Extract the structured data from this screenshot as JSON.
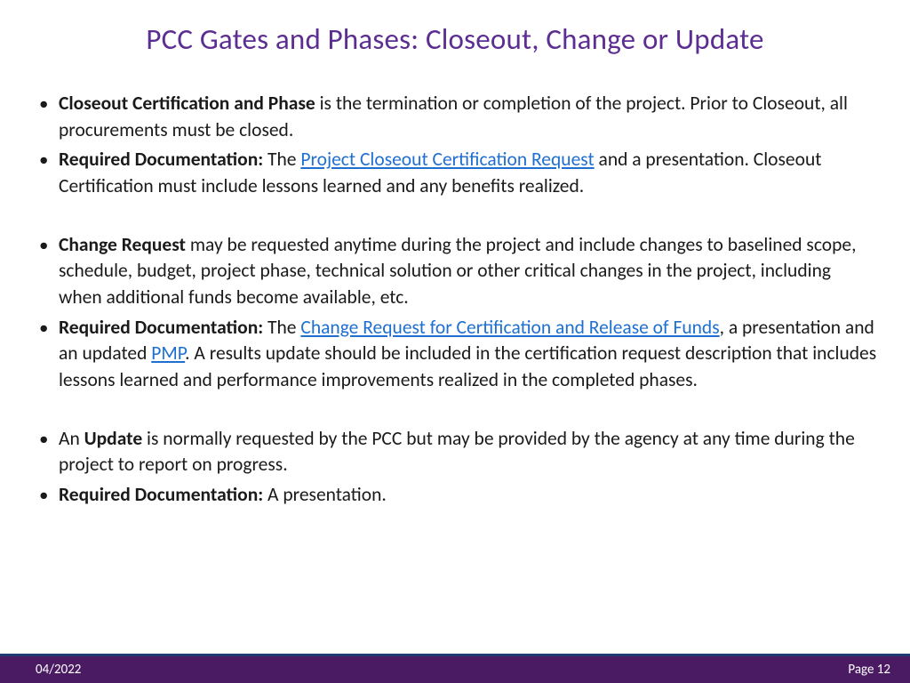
{
  "colors": {
    "title": "#5c2e91",
    "body_text": "#1a1a1a",
    "link": "#1f6fd1",
    "footer_bg": "#4a1a63",
    "footer_accent": "#1f3a6e",
    "footer_text": "#ffffff",
    "background": "#ffffff"
  },
  "title": "PCC Gates and Phases: Closeout, Change or Update",
  "bullets": {
    "b1": {
      "bold": "Closeout Certification and Phase",
      "rest": " is the termination or completion of the project. Prior to Closeout, all procurements must be closed."
    },
    "b2": {
      "bold": "Required Documentation:",
      "pre": " The ",
      "link1": "Project Closeout Certification Request",
      "rest": " and a presentation. Closeout Certification must include lessons learned and any benefits realized."
    },
    "b3": {
      "bold": "Change Request",
      "rest": " may be requested anytime during the project and include changes to baselined scope, schedule, budget, project phase, technical solution or other critical changes in the project, including when additional funds become available, etc."
    },
    "b4": {
      "bold": "Required Documentation:",
      "pre": " The ",
      "link1": "Change Request for Certification and Release of Funds",
      "mid1": ", a presentation and an updated ",
      "link2": "PMP",
      "rest": ".  A results update should be included in the certification request description that includes lessons learned and performance improvements realized in the completed phases."
    },
    "b5": {
      "pre": "An ",
      "bold": "Update",
      "rest": " is normally requested by the PCC but may be provided by the agency at any time during the project to report on progress."
    },
    "b6": {
      "bold": "Required Documentation:",
      "rest": "  A presentation."
    }
  },
  "footer": {
    "date": "04/2022",
    "page_label": "Page 12"
  }
}
